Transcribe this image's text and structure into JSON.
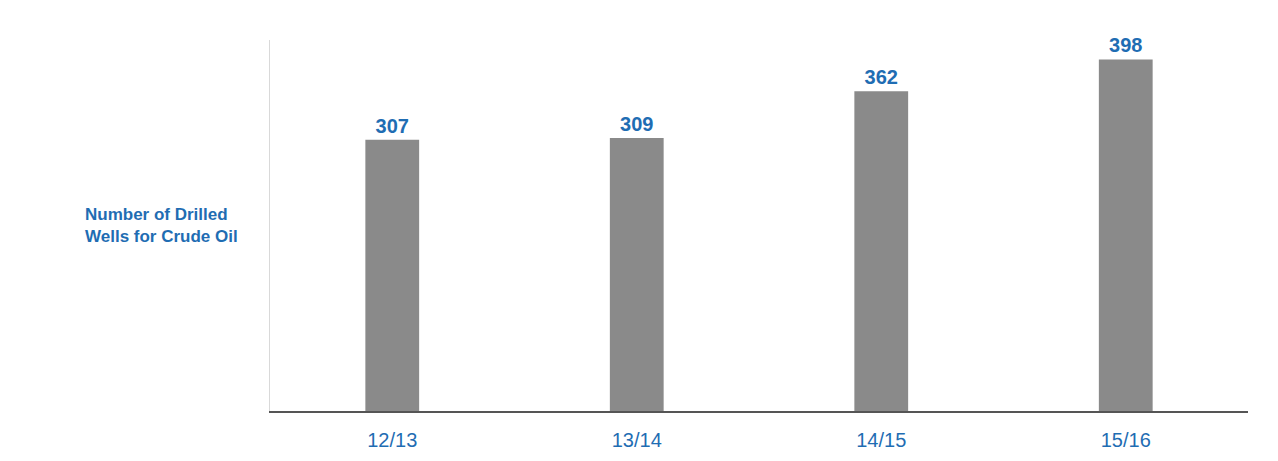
{
  "chart_data": {
    "type": "bar",
    "ylabel": "Number of Drilled Wells for Crude Oil",
    "categories": [
      "12/13",
      "13/14",
      "14/15",
      "15/16"
    ],
    "values": [
      307,
      309,
      362,
      398
    ],
    "color": "#8a8a8a",
    "ylim": [
      0,
      420
    ],
    "yticks": [],
    "grid": false,
    "data_labels": true,
    "tick_labels": "x"
  }
}
